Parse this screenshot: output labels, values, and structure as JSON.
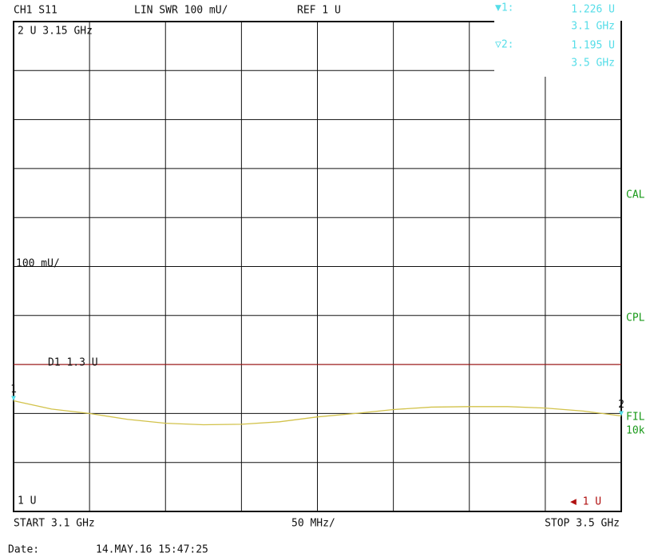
{
  "chart_data": {
    "type": "line",
    "header": {
      "channel": "CH1 S11",
      "format": "LIN SWR 100 mU/",
      "reference": "REF 1 U"
    },
    "top_label": "2 U  3.15 GHz",
    "scale_label": "100 mU/",
    "bottom_label": "1 U",
    "x": [
      3.1,
      3.125,
      3.15,
      3.175,
      3.2,
      3.225,
      3.25,
      3.275,
      3.3,
      3.325,
      3.35,
      3.375,
      3.4,
      3.425,
      3.45,
      3.475,
      3.5
    ],
    "series": [
      {
        "name": "S11",
        "color": "#d2c24a",
        "values": [
          1.226,
          1.209,
          1.2,
          1.188,
          1.18,
          1.177,
          1.178,
          1.183,
          1.193,
          1.2,
          1.208,
          1.213,
          1.214,
          1.214,
          1.211,
          1.205,
          1.195
        ]
      }
    ],
    "xlim": [
      3.1,
      3.5
    ],
    "xticks": [
      3.1,
      3.15,
      3.2,
      3.25,
      3.3,
      3.35,
      3.4,
      3.45,
      3.5
    ],
    "ylim": [
      1,
      2
    ],
    "yticks": [
      1,
      1.1,
      1.2,
      1.3,
      1.4,
      1.5,
      1.6,
      1.7,
      1.8,
      1.9,
      2
    ],
    "grid": true,
    "reference_lines": [
      {
        "label": "D1 1.3 U",
        "value": 1.3,
        "color": "#b01010"
      }
    ],
    "markers": [
      {
        "label": "1",
        "readout_label": "▼1:",
        "x": 3.1,
        "y": 1.226,
        "value_text": "1.226 U",
        "freq_text": "3.1 GHz"
      },
      {
        "label": "2",
        "readout_label": "▽2:",
        "x": 3.5,
        "y": 1.195,
        "value_text": "1.195 U",
        "freq_text": "3.5 GHz"
      }
    ],
    "marker_color": "#55dde8",
    "status": [
      "CAL",
      "CPL",
      "FIL",
      "10k"
    ],
    "ref_indicator": "◀ 1 U",
    "footer": {
      "start": "START  3.1 GHz",
      "span": "50 MHz/",
      "stop": "STOP 3.5 GHz"
    },
    "date_label": "Date:",
    "date": "14.MAY.16  15:47:25"
  }
}
